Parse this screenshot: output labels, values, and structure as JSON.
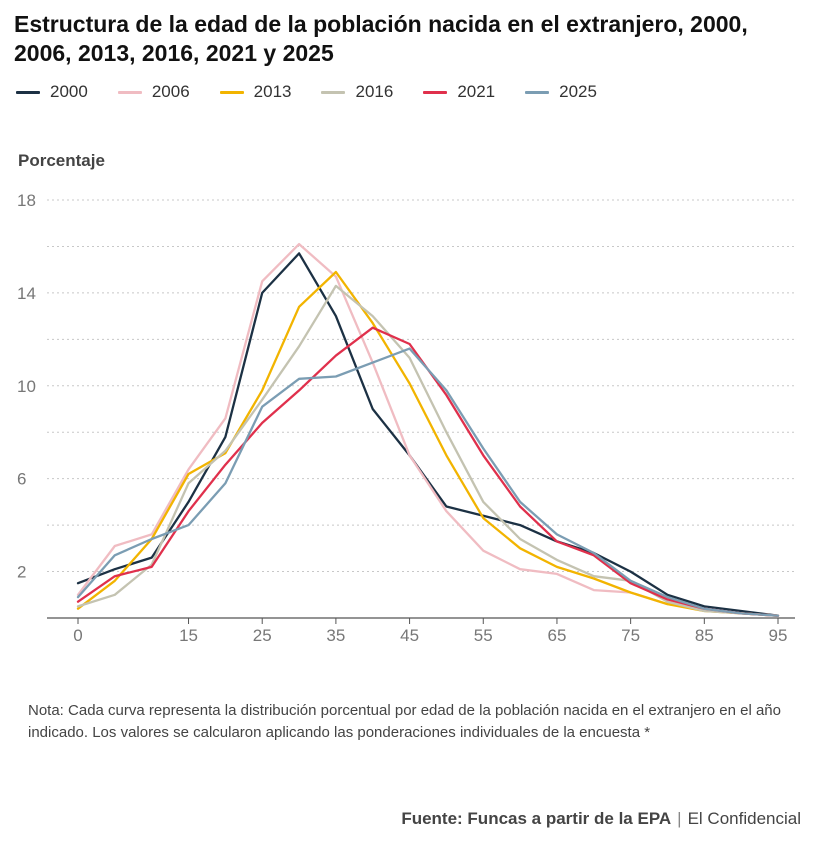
{
  "header": {
    "title": "Estructura de la edad de la población nacida en el extranjero, 2000, 2006, 2013, 2016, 2021 y 2025"
  },
  "footer": {
    "note": "Nota: Cada curva representa la distribución porcentual por edad de la población nacida en el extranjero en el año indicado. Los valores se calcularon aplicando las ponderaciones individuales de la encuesta *",
    "source_bold": "Fuente: Funcas a partir de la EPA",
    "source_separator": "|",
    "source_publisher": "El Confidencial"
  },
  "chart_data": {
    "type": "line",
    "title": "Estructura de la edad de la población nacida en el extranjero, 2000, 2006, 2013, 2016, 2021 y 2025",
    "ylabel": "Porcentaje",
    "xlabel": "",
    "x": [
      0,
      5,
      10,
      15,
      20,
      25,
      30,
      35,
      40,
      45,
      50,
      55,
      60,
      65,
      70,
      75,
      80,
      85,
      90,
      95
    ],
    "xticks": [
      "0",
      "15",
      "25",
      "35",
      "45",
      "55",
      "65",
      "75",
      "85",
      "95"
    ],
    "xtick_values": [
      0,
      15,
      25,
      35,
      45,
      55,
      65,
      75,
      85,
      95
    ],
    "yticks": [
      "2",
      "6",
      "10",
      "14",
      "18"
    ],
    "ytick_values": [
      2,
      6,
      10,
      14,
      18
    ],
    "ylim": [
      0,
      18
    ],
    "grid": "horizontal dotted",
    "legend_position": "top-left",
    "series": [
      {
        "name": "2000",
        "color": "#1c3144",
        "values": [
          1.5,
          2.1,
          2.6,
          5.0,
          7.8,
          14.0,
          15.7,
          13.0,
          9.0,
          7.0,
          4.8,
          4.4,
          4.0,
          3.3,
          2.8,
          2.0,
          1.0,
          0.5,
          0.3,
          0.1
        ]
      },
      {
        "name": "2006",
        "color": "#f0bcc2",
        "values": [
          1.0,
          3.1,
          3.6,
          6.4,
          8.6,
          14.5,
          16.1,
          14.7,
          11.0,
          7.0,
          4.6,
          2.9,
          2.1,
          1.9,
          1.2,
          1.1,
          0.6,
          0.4,
          0.2,
          0.1
        ]
      },
      {
        "name": "2013",
        "color": "#f2b400",
        "values": [
          0.4,
          1.6,
          3.4,
          6.2,
          7.1,
          9.8,
          13.4,
          14.9,
          12.7,
          10.1,
          7.0,
          4.3,
          3.0,
          2.2,
          1.7,
          1.1,
          0.6,
          0.3,
          0.2,
          0.1
        ]
      },
      {
        "name": "2016",
        "color": "#c4c3b1",
        "values": [
          0.5,
          1.0,
          2.3,
          5.8,
          7.2,
          9.4,
          11.7,
          14.3,
          13.0,
          11.2,
          8.0,
          5.0,
          3.4,
          2.5,
          1.8,
          1.6,
          0.7,
          0.3,
          0.2,
          0.1
        ]
      },
      {
        "name": "2021",
        "color": "#e0304c",
        "values": [
          0.7,
          1.8,
          2.2,
          4.6,
          6.6,
          8.4,
          9.8,
          11.3,
          12.5,
          11.8,
          9.6,
          7.0,
          4.8,
          3.3,
          2.7,
          1.5,
          0.8,
          0.4,
          0.2,
          0.1
        ]
      },
      {
        "name": "2025",
        "color": "#7b9db3",
        "values": [
          0.9,
          2.7,
          3.4,
          4.0,
          5.8,
          9.1,
          10.3,
          10.4,
          11.0,
          11.6,
          9.8,
          7.3,
          5.0,
          3.6,
          2.8,
          1.6,
          0.9,
          0.4,
          0.2,
          0.1
        ]
      }
    ]
  }
}
